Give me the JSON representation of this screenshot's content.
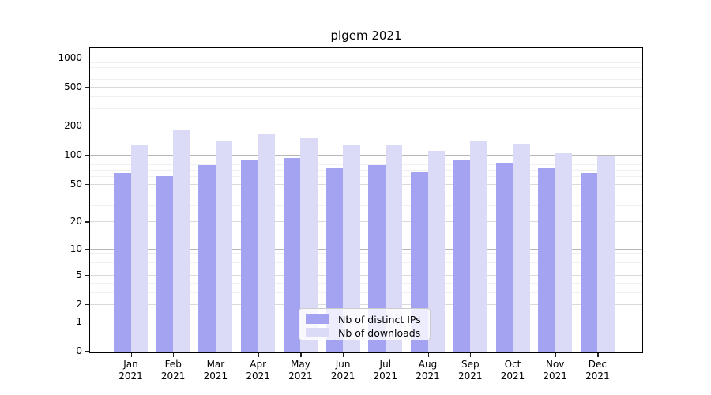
{
  "chart_data": {
    "type": "bar",
    "title": "plgem 2021",
    "yscale": "log1p",
    "categories": [
      "Jan 2021",
      "Feb 2021",
      "Mar 2021",
      "Apr 2021",
      "May 2021",
      "Jun 2021",
      "Jul 2021",
      "Aug 2021",
      "Sep 2021",
      "Oct 2021",
      "Nov 2021",
      "Dec 2021"
    ],
    "series": [
      {
        "name": "Nb of distinct IPs",
        "color": "#a3a3f2",
        "values": [
          66,
          61,
          80,
          89,
          95,
          74,
          80,
          67,
          90,
          84,
          74,
          66
        ]
      },
      {
        "name": "Nb of downloads",
        "color": "#dbdbf8",
        "values": [
          130,
          186,
          142,
          168,
          152,
          130,
          129,
          113,
          142,
          134,
          107,
          100
        ]
      }
    ],
    "xlabel": "",
    "ylabel": "",
    "ylim": [
      0,
      1200
    ],
    "y_ticks": [
      1000,
      500,
      200,
      100,
      50,
      20,
      10,
      5,
      2,
      1,
      0
    ],
    "grid": true,
    "legend_position": "lower center"
  },
  "axis": {
    "y_tick_labels": [
      "1000",
      "500",
      "200",
      "100",
      "50",
      "20",
      "10",
      "5",
      "2",
      "1",
      "0"
    ],
    "months": [
      "Jan",
      "Feb",
      "Mar",
      "Apr",
      "May",
      "Jun",
      "Jul",
      "Aug",
      "Sep",
      "Oct",
      "Nov",
      "Dec"
    ],
    "year": "2021",
    "grid_major_values": [
      1000,
      100,
      10,
      1
    ],
    "grid_mid_values": [
      500,
      200,
      50,
      20,
      5,
      2
    ],
    "grid_minor_values": [
      900,
      800,
      700,
      600,
      400,
      300,
      90,
      80,
      70,
      60,
      40,
      30,
      9,
      8,
      7,
      6,
      4,
      3
    ]
  },
  "colors": {
    "grid_major": "#b7b7b7",
    "grid_mid": "#dadada",
    "grid_minor": "#f0f0f0",
    "spine": "#000000",
    "bar_distinct_ips": "#a3a3f2",
    "bar_downloads": "#dbdbf8",
    "background": "#ffffff",
    "text": "#000000"
  },
  "legend": {
    "items": [
      {
        "label": "Nb of distinct IPs"
      },
      {
        "label": "Nb of downloads"
      }
    ]
  }
}
